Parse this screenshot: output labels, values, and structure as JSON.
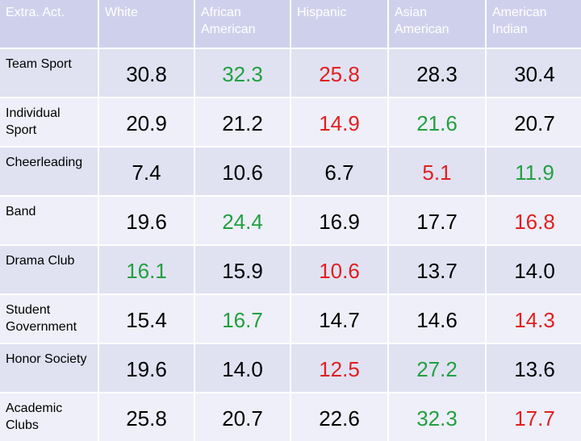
{
  "table": {
    "header": [
      "Extra. Act.",
      "White",
      "African American",
      "Hispanic",
      "Asian American",
      "American Indian"
    ],
    "rows": [
      {
        "label": "Team Sport",
        "cells": [
          {
            "text": "30.8"
          },
          {
            "text": "32.3",
            "color": "#22a040"
          },
          {
            "text": "25.8",
            "color": "#e02020"
          },
          {
            "text": "28.3"
          },
          {
            "text": "30.4"
          }
        ]
      },
      {
        "label": "Individual Sport",
        "cells": [
          {
            "text": "20.9"
          },
          {
            "text": "21.2"
          },
          {
            "text": "14.9",
            "color": "#e02020"
          },
          {
            "text": "21.6",
            "color": "#22a040"
          },
          {
            "text": "20.7"
          }
        ]
      },
      {
        "label": "Cheerleading",
        "cells": [
          {
            "text": "7.4"
          },
          {
            "text": "10.6"
          },
          {
            "text": "6.7"
          },
          {
            "text": "5.1",
            "color": "#e02020"
          },
          {
            "text": "11.9",
            "color": "#22a040"
          }
        ]
      },
      {
        "label": "Band",
        "cells": [
          {
            "text": "19.6"
          },
          {
            "text": "24.4",
            "color": "#22a040"
          },
          {
            "text": "16.9"
          },
          {
            "text": "17.7"
          },
          {
            "text": "16.8",
            "color": "#e02020"
          }
        ]
      },
      {
        "label": "Drama Club",
        "cells": [
          {
            "text": "16.1",
            "color": "#22a040"
          },
          {
            "text": "15.9"
          },
          {
            "text": "10.6",
            "color": "#e02020"
          },
          {
            "text": "13.7"
          },
          {
            "text": "14.0"
          }
        ]
      },
      {
        "label": "Student Government",
        "cells": [
          {
            "text": "15.4"
          },
          {
            "text": "16.7",
            "color": "#22a040"
          },
          {
            "text": "14.7"
          },
          {
            "text": "14.6"
          },
          {
            "text": "14.3",
            "color": "#e02020"
          }
        ]
      },
      {
        "label": "Honor Society",
        "cells": [
          {
            "text": "19.6"
          },
          {
            "text": "14.0"
          },
          {
            "text": "12.5",
            "color": "#e02020"
          },
          {
            "text": "27.2",
            "color": "#22a040"
          },
          {
            "text": "13.6"
          }
        ]
      },
      {
        "label": "Academic Clubs",
        "cells": [
          {
            "text": "25.8"
          },
          {
            "text": "20.7"
          },
          {
            "text": "22.6"
          },
          {
            "text": "32.3",
            "color": "#22a040"
          },
          {
            "text": "17.7",
            "color": "#e02020"
          }
        ]
      }
    ]
  }
}
